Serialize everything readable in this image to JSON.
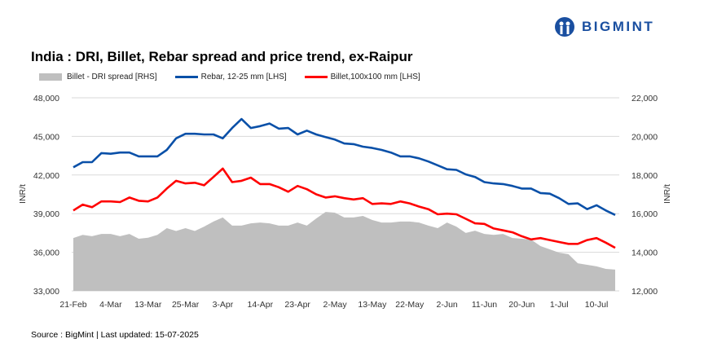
{
  "brand": {
    "name": "BIGMINT",
    "color": "#1a4fa0"
  },
  "chart_data": {
    "type": "line",
    "title": "India : DRI, Billet, Rebar spread and price trend, ex-Raipur",
    "ylabel_left": "INR/t",
    "ylabel_right": "INR/t",
    "ylim_left": [
      33000,
      48000
    ],
    "ylim_right": [
      12000,
      22000
    ],
    "yticks_left": [
      "33,000",
      "36,000",
      "39,000",
      "42,000",
      "45,000",
      "48,000"
    ],
    "yticks_right": [
      "12,000",
      "14,000",
      "16,000",
      "18,000",
      "20,000",
      "22,000"
    ],
    "x_labels": [
      "21-Feb",
      "4-Mar",
      "13-Mar",
      "25-Mar",
      "3-Apr",
      "14-Apr",
      "23-Apr",
      "2-May",
      "13-May",
      "22-May",
      "2-Jun",
      "11-Jun",
      "20-Jun",
      "1-Jul",
      "10-Jul"
    ],
    "label_every": 4,
    "grid": true,
    "legend": "top-left",
    "series": [
      {
        "name": "Billet - DRI spread  [RHS]",
        "type": "area",
        "axis": "right",
        "color": "#bfbfbf",
        "values": [
          14740,
          14900,
          14830,
          14950,
          14950,
          14830,
          14950,
          14700,
          14750,
          14900,
          15250,
          15100,
          15250,
          15100,
          15330,
          15590,
          15800,
          15380,
          15380,
          15500,
          15540,
          15500,
          15380,
          15380,
          15540,
          15380,
          15750,
          16090,
          16050,
          15800,
          15800,
          15880,
          15670,
          15540,
          15540,
          15590,
          15590,
          15540,
          15380,
          15250,
          15540,
          15330,
          15000,
          15120,
          14950,
          14900,
          14950,
          14740,
          14700,
          14660,
          14320,
          14150,
          13980,
          13900,
          13430,
          13350,
          13270,
          13140,
          13100
        ]
      },
      {
        "name": "Rebar, 12-25 mm [LHS]",
        "type": "line",
        "axis": "left",
        "color": "#0a50a8",
        "values": [
          42600,
          43000,
          43000,
          43700,
          43650,
          43750,
          43750,
          43450,
          43450,
          43450,
          43950,
          44850,
          45200,
          45200,
          45150,
          45150,
          44850,
          45650,
          46350,
          45650,
          45800,
          46000,
          45600,
          45650,
          45150,
          45450,
          45150,
          44950,
          44750,
          44450,
          44400,
          44200,
          44100,
          43950,
          43750,
          43450,
          43450,
          43300,
          43050,
          42750,
          42450,
          42400,
          42050,
          41850,
          41450,
          41350,
          41300,
          41150,
          40950,
          40950,
          40600,
          40550,
          40200,
          39750,
          39800,
          39350,
          39650,
          39250,
          38900
        ]
      },
      {
        "name": "Billet,100x100 mm [LHS]",
        "type": "line",
        "axis": "left",
        "color": "#ff0000",
        "values": [
          39250,
          39700,
          39500,
          39950,
          39950,
          39900,
          40250,
          40000,
          39950,
          40250,
          40950,
          41550,
          41350,
          41400,
          41200,
          41850,
          42500,
          41450,
          41550,
          41800,
          41300,
          41300,
          41050,
          40700,
          41150,
          40900,
          40500,
          40250,
          40350,
          40200,
          40100,
          40200,
          39750,
          39800,
          39750,
          39950,
          39800,
          39550,
          39350,
          38950,
          39000,
          38950,
          38600,
          38250,
          38200,
          37850,
          37700,
          37550,
          37250,
          37000,
          37100,
          36950,
          36800,
          36650,
          36650,
          36950,
          37100,
          36750,
          36350
        ]
      }
    ]
  },
  "source": "Source : BigMint | Last updated: 15-07-2025"
}
